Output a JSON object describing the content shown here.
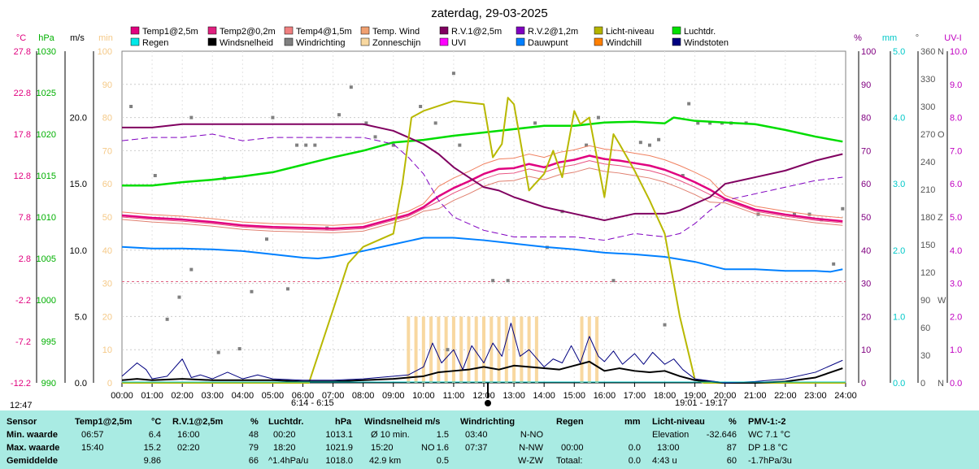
{
  "title": "zaterdag, 29-03-2025",
  "left_axes": [
    {
      "label": "°C",
      "color": "#e0007f",
      "ticks": [
        "27.8",
        "22.8",
        "17.8",
        "12.8",
        "7.8",
        "2.8",
        "-2.2",
        "-7.2",
        "-12.2"
      ]
    },
    {
      "label": "hPa",
      "color": "#00b000",
      "ticks": [
        "1030",
        "1025",
        "1020",
        "1015",
        "1010",
        "1005",
        "1000",
        "995",
        "990"
      ]
    },
    {
      "label": "m/s",
      "color": "#000000",
      "ticks": [
        "20.0",
        "15.0",
        "10.0",
        "5.0",
        "0.0"
      ]
    },
    {
      "label": "min",
      "color": "#f5c987",
      "ticks": [
        "100",
        "90",
        "80",
        "70",
        "60",
        "50",
        "40",
        "30",
        "20",
        "10",
        "0"
      ]
    }
  ],
  "right_axes": [
    {
      "label": "%",
      "color": "#800080",
      "ticks": [
        "100",
        "90",
        "80",
        "70",
        "60",
        "50",
        "40",
        "30",
        "20",
        "10",
        "0"
      ]
    },
    {
      "label": "mm",
      "color": "#00c8c8",
      "ticks": [
        "5.0",
        "4.0",
        "3.0",
        "2.0",
        "1.0",
        "0.0"
      ]
    },
    {
      "label": "°",
      "color": "#555555",
      "ticks": [
        "360",
        "330",
        "300",
        "270",
        "240",
        "210",
        "180",
        "150",
        "120",
        "90",
        "60",
        "30",
        "0"
      ],
      "compass": [
        "N",
        "W",
        "Z",
        "O",
        "N"
      ]
    },
    {
      "label": "UV-I",
      "color": "#c000c0",
      "ticks": [
        "10.0",
        "9.0",
        "8.0",
        "7.0",
        "6.0",
        "5.0",
        "4.0",
        "3.0",
        "2.0",
        "1.0",
        "0.0"
      ]
    }
  ],
  "x_ticks": [
    "00:00",
    "01:00",
    "02:00",
    "03:00",
    "04:00",
    "05:00",
    "06:00",
    "07:00",
    "08:00",
    "09:00",
    "10:00",
    "11:00",
    "12:00",
    "13:00",
    "14:00",
    "15:00",
    "16:00",
    "17:00",
    "18:00",
    "19:00",
    "20:00",
    "21:00",
    "22:00",
    "23:00",
    "24:00"
  ],
  "time_marks": {
    "now": "12:47",
    "sunrise": "6:14 - 6:15",
    "sunset": "19:01 - 19:17"
  },
  "legend": [
    {
      "label": "Temp1@2,5m",
      "color": "#e0007f"
    },
    {
      "label": "Temp2@0,2m",
      "color": "#e0207f"
    },
    {
      "label": "Temp4@1,5m",
      "color": "#f08080"
    },
    {
      "label": "Temp. Wind",
      "color": "#f0a070"
    },
    {
      "label": "R.V.1@2,5m",
      "color": "#800060"
    },
    {
      "label": "R.V.2@1,2m",
      "color": "#8000c0"
    },
    {
      "label": "Licht-niveau",
      "color": "#b4b400"
    },
    {
      "label": "Luchtdr.",
      "color": "#00e000"
    },
    {
      "label": "Regen",
      "color": "#00e8e8"
    },
    {
      "label": "Windsnelheid",
      "color": "#000000"
    },
    {
      "label": "Windrichting",
      "color": "#808080"
    },
    {
      "label": "Zonneschijn",
      "color": "#f8d8a0"
    },
    {
      "label": "UVI",
      "color": "#ff00ff"
    },
    {
      "label": "Dauwpunt",
      "color": "#0080ff"
    },
    {
      "label": "Windchill",
      "color": "#ff8000"
    },
    {
      "label": "Windstoten",
      "color": "#000080"
    }
  ],
  "chart_data": {
    "type": "line",
    "title": "zaterdag, 29-03-2025",
    "x_unit": "hour",
    "xlim": [
      0,
      24
    ],
    "series": [
      {
        "name": "Luchtdr.",
        "unit": "hPa",
        "ylim": [
          990,
          1030
        ],
        "color": "#00dd00",
        "x": [
          0,
          1,
          2,
          3,
          4,
          5,
          6,
          7,
          8,
          9,
          10,
          11,
          12,
          13,
          14,
          15,
          16,
          17,
          18,
          18.3,
          19,
          20,
          21,
          22,
          23,
          23.9
        ],
        "y": [
          1013.8,
          1013.8,
          1014.2,
          1014.5,
          1014.9,
          1015.4,
          1016.3,
          1017.2,
          1018.0,
          1019.0,
          1019.3,
          1019.8,
          1020.2,
          1020.6,
          1021.0,
          1021.0,
          1021.4,
          1021.5,
          1021.3,
          1022.0,
          1021.6,
          1021.4,
          1021.2,
          1020.5,
          1019.7,
          1019.1
        ]
      },
      {
        "name": "Temp1@2,5m",
        "unit": "°C",
        "ylim": [
          -12.2,
          27.8
        ],
        "color": "#e0007f",
        "x": [
          0,
          1,
          2,
          3,
          4,
          5,
          6,
          7,
          8,
          8.5,
          9,
          9.5,
          10,
          10.5,
          11,
          11.5,
          12,
          12.5,
          13,
          13.5,
          14,
          14.5,
          15,
          15.5,
          16,
          16.5,
          17,
          17.5,
          18,
          18.5,
          19,
          19.5,
          20,
          21,
          22,
          23,
          23.9
        ],
        "y": [
          8.0,
          7.7,
          7.5,
          7.2,
          6.8,
          6.6,
          6.5,
          6.4,
          6.6,
          7.1,
          7.6,
          8.1,
          9.0,
          10.3,
          11.3,
          12.1,
          13.0,
          13.6,
          13.7,
          14.2,
          13.8,
          14.4,
          14.7,
          15.2,
          14.8,
          14.6,
          14.3,
          14.0,
          13.5,
          12.8,
          12.0,
          11.1,
          10.0,
          8.7,
          8.1,
          7.6,
          7.3
        ]
      },
      {
        "name": "R.V.1@2,5m",
        "unit": "%",
        "ylim": [
          0,
          100
        ],
        "color": "#800060",
        "x": [
          0,
          1,
          2,
          3,
          4,
          5,
          6,
          7,
          8,
          9,
          9.5,
          10,
          10.5,
          11,
          11.5,
          12,
          12.5,
          13,
          14,
          15,
          15.5,
          16,
          16.5,
          17,
          18,
          18.5,
          19,
          19.5,
          20,
          20.5,
          21,
          22,
          23,
          23.9
        ],
        "y": [
          77,
          77,
          78,
          78,
          78,
          78,
          78,
          78,
          78,
          76,
          74,
          72,
          69,
          65,
          62,
          59,
          58,
          56,
          53,
          51,
          50,
          49,
          50,
          51,
          51,
          52,
          54,
          56,
          60,
          61,
          62,
          64,
          67,
          69
        ]
      },
      {
        "name": "R.V.2@1,2m",
        "unit": "%",
        "ylim": [
          0,
          100
        ],
        "color": "#8000c0",
        "x": [
          0,
          1,
          2,
          3,
          4,
          5,
          6,
          7,
          8,
          9,
          9.5,
          10,
          10.5,
          11,
          11.5,
          12,
          13,
          14,
          15,
          16,
          17,
          18,
          18.5,
          19,
          19.5,
          20,
          21,
          22,
          23,
          23.9
        ],
        "y": [
          73,
          74,
          74,
          75,
          73,
          74,
          74,
          74,
          74,
          72,
          68,
          63,
          55,
          50,
          48,
          46,
          44,
          44,
          44,
          43,
          45,
          44,
          45,
          48,
          52,
          55,
          57,
          59,
          61,
          62
        ]
      },
      {
        "name": "Dauwpunt",
        "unit": "°C",
        "ylim": [
          -12.2,
          27.8
        ],
        "color": "#0080ff",
        "x": [
          0,
          1,
          2,
          3,
          4,
          5,
          6,
          6.5,
          7,
          8,
          9,
          9.5,
          10,
          11,
          12,
          13,
          14,
          15,
          16,
          17,
          18,
          19,
          20,
          21,
          22,
          23,
          23.5,
          23.9
        ],
        "y": [
          4.2,
          4.0,
          4.0,
          3.9,
          3.7,
          3.3,
          2.9,
          2.8,
          3.0,
          3.7,
          4.5,
          4.9,
          5.3,
          5.3,
          5.0,
          4.6,
          4.2,
          3.9,
          3.5,
          3.3,
          3.0,
          2.4,
          1.5,
          1.5,
          1.3,
          1.3,
          1.2,
          1.5
        ]
      },
      {
        "name": "Licht-niveau",
        "unit": "%",
        "ylim": [
          0,
          100
        ],
        "color": "#b8b800",
        "x": [
          0,
          6.2,
          7,
          7.5,
          8,
          9,
          9.3,
          9.6,
          10,
          11,
          12,
          12.3,
          12.6,
          12.8,
          13,
          13.5,
          14,
          14.3,
          14.6,
          15,
          15.2,
          15.5,
          16,
          16.3,
          16.5,
          17,
          17.5,
          18,
          18.5,
          19,
          19.3,
          24
        ],
        "y": [
          0,
          0,
          22,
          36,
          41,
          45,
          60,
          80,
          82,
          85,
          84,
          68,
          72,
          86,
          84,
          58,
          63,
          70,
          62,
          82,
          78,
          80,
          56,
          75,
          72,
          64,
          55,
          45,
          20,
          1,
          0,
          0
        ]
      },
      {
        "name": "Windsnelheid",
        "unit": "m/s",
        "ylim": [
          0,
          25
        ],
        "color": "#000000",
        "x": [
          0,
          0.5,
          1,
          2,
          3,
          4,
          5,
          6,
          7,
          8,
          9,
          9.5,
          10,
          10.5,
          11,
          11.5,
          12,
          12.5,
          13,
          13.5,
          14,
          14.5,
          15,
          15.5,
          16,
          16.5,
          17,
          17.5,
          18,
          18.5,
          19,
          20,
          21,
          22,
          23,
          23.9
        ],
        "y": [
          0.2,
          0.3,
          0.2,
          0.3,
          0.2,
          0.2,
          0.2,
          0.1,
          0.1,
          0.2,
          0.3,
          0.4,
          0.5,
          0.8,
          0.9,
          1.0,
          1.2,
          1.0,
          1.3,
          1.2,
          1.1,
          1.0,
          1.3,
          1.6,
          0.9,
          1.1,
          0.9,
          0.8,
          0.9,
          0.5,
          0.2,
          0.0,
          0.0,
          0.1,
          0.4,
          1.1
        ]
      },
      {
        "name": "Windstoten",
        "unit": "m/s",
        "ylim": [
          0,
          25
        ],
        "color": "#000080",
        "x": [
          0,
          0.5,
          0.8,
          1,
          1.5,
          2,
          2.3,
          2.6,
          3,
          3.5,
          4,
          4.5,
          5,
          6,
          7,
          8,
          9,
          9.5,
          10,
          10.3,
          10.6,
          11,
          11.3,
          11.6,
          12,
          12.3,
          12.6,
          12.9,
          13.2,
          13.5,
          14,
          14.3,
          14.6,
          14.9,
          15.2,
          15.5,
          15.8,
          16,
          16.3,
          16.6,
          17,
          17.3,
          17.6,
          18,
          18.3,
          18.6,
          19,
          20,
          21,
          22,
          23,
          23.9
        ],
        "y": [
          0.5,
          1.5,
          1.0,
          0.3,
          0.5,
          1.8,
          0.4,
          0.6,
          0.3,
          0.8,
          0.3,
          0.6,
          0.3,
          0.2,
          0.2,
          0.3,
          0.5,
          0.6,
          1.2,
          3.0,
          1.5,
          2.5,
          1.0,
          2.8,
          1.5,
          3.0,
          2.0,
          4.5,
          2.0,
          2.5,
          1.2,
          1.8,
          1.5,
          2.8,
          1.5,
          3.5,
          2.0,
          1.6,
          2.4,
          1.4,
          2.2,
          1.4,
          2.3,
          1.4,
          1.8,
          1.0,
          0.3,
          0.0,
          0.1,
          0.3,
          0.8,
          1.7
        ]
      },
      {
        "name": "Zonneschijn",
        "unit": "min",
        "ylim": [
          0,
          100
        ],
        "color": "#f8d8a0",
        "style": "bars",
        "x": [
          9.5,
          9.75,
          10,
          10.25,
          10.5,
          10.75,
          11,
          11.25,
          11.5,
          11.75,
          12,
          12.25,
          12.5,
          12.75,
          13,
          13.25,
          13.5,
          13.75,
          15.25,
          15.5,
          15.75
        ],
        "y": [
          20,
          20,
          20,
          20,
          20,
          20,
          20,
          20,
          20,
          20,
          20,
          20,
          20,
          20,
          20,
          20,
          20,
          20,
          20,
          20,
          20
        ]
      }
    ]
  },
  "summary": {
    "headers": [
      "Sensor",
      "Temp1@2,5m",
      "°C",
      "R.V.1@2,5m",
      "%",
      "Luchtdr.",
      "hPa",
      "Windsnelheid  m/s",
      "Windrichting",
      "Regen",
      "mm",
      "Licht-niveau",
      "%",
      "PMV-1:-2"
    ],
    "labels": [
      "Min. waarde",
      "Max. waarde",
      "Gemiddelde"
    ],
    "temp_time": [
      "06:57",
      "15:40",
      ""
    ],
    "temp_val": [
      "6.4",
      "15.2",
      "9.86"
    ],
    "rv_time": [
      "16:00",
      "02:20",
      ""
    ],
    "rv_val": [
      "48",
      "79",
      "66"
    ],
    "press_time": [
      "00:20",
      "18:20",
      "^1.4hPa/u"
    ],
    "press_val": [
      "1013.1",
      "1021.9",
      "1018.0"
    ],
    "wind_a": [
      "Ø 10 min.",
      "15:20",
      "42.9 km"
    ],
    "wind_b": [
      "",
      "NO",
      ""
    ],
    "wind_c": [
      "1.5",
      "1.6",
      "0.5"
    ],
    "dir_time": [
      "03:40",
      "07:37",
      ""
    ],
    "dir_val": [
      "N-NO",
      "N-NW",
      "W-ZW"
    ],
    "rain_time": [
      "",
      "00:00",
      "Totaal:"
    ],
    "rain_val": [
      "",
      "0.0",
      "0.0"
    ],
    "light_a": [
      "Elevation",
      "13:00",
      "4:43 u"
    ],
    "light_b": [
      "-32.646",
      "87",
      "60"
    ],
    "pmv": [
      "WC 7.1 °C",
      "DP 1.8 °C",
      "-1.7hPa/3u"
    ]
  }
}
